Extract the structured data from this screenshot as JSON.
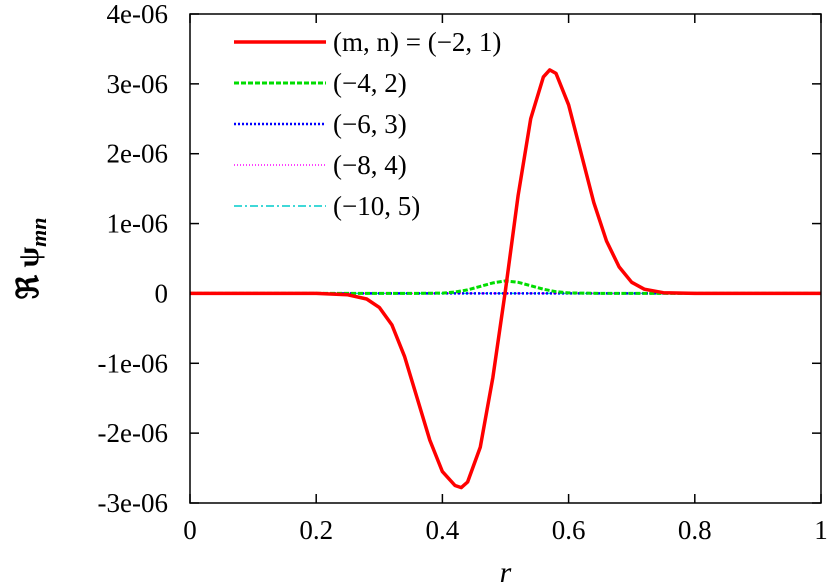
{
  "chart_data": {
    "type": "line",
    "title": "",
    "xlabel": "r",
    "ylabel": "ℜ ψ_mn",
    "ylabel_parts": {
      "prefix": "ℜ ψ",
      "subscript": "mn"
    },
    "xlim": [
      0,
      1
    ],
    "ylim": [
      -3e-06,
      4e-06
    ],
    "xticks": [
      0,
      0.2,
      0.4,
      0.6,
      0.8,
      1
    ],
    "xtick_labels": [
      "0",
      "0.2",
      "0.4",
      "0.6",
      "0.8",
      "1"
    ],
    "yticks": [
      -3e-06,
      -2e-06,
      -1e-06,
      0,
      1e-06,
      2e-06,
      3e-06,
      4e-06
    ],
    "ytick_labels": [
      "-3e-06",
      "-2e-06",
      "-1e-06",
      "0",
      "1e-06",
      "2e-06",
      "3e-06",
      "4e-06"
    ],
    "grid": false,
    "legend_position": "top-left",
    "series": [
      {
        "name": "(m, n) = (−2, 1)",
        "color": "#ff0000",
        "dash": "solid",
        "x": [
          0,
          0.1,
          0.2,
          0.25,
          0.28,
          0.3,
          0.32,
          0.34,
          0.36,
          0.38,
          0.4,
          0.42,
          0.43,
          0.44,
          0.46,
          0.48,
          0.5,
          0.52,
          0.54,
          0.56,
          0.57,
          0.58,
          0.6,
          0.62,
          0.64,
          0.66,
          0.68,
          0.7,
          0.72,
          0.75,
          0.8,
          0.9,
          1.0
        ],
        "y": [
          0,
          0,
          0,
          -2e-08,
          -8e-08,
          -2e-07,
          -4.5e-07,
          -9e-07,
          -1.5e-06,
          -2.1e-06,
          -2.55e-06,
          -2.75e-06,
          -2.78e-06,
          -2.7e-06,
          -2.2e-06,
          -1.2e-06,
          5e-08,
          1.4e-06,
          2.5e-06,
          3.1e-06,
          3.2e-06,
          3.15e-06,
          2.7e-06,
          2e-06,
          1.3e-06,
          7.5e-07,
          3.8e-07,
          1.6e-07,
          6e-08,
          1e-08,
          0,
          0,
          0
        ]
      },
      {
        "name": "(−4, 2)",
        "color": "#00dd00",
        "dash": "dashed",
        "x": [
          0,
          0.35,
          0.4,
          0.42,
          0.44,
          0.46,
          0.48,
          0.5,
          0.52,
          0.54,
          0.56,
          0.58,
          0.6,
          0.65,
          1.0
        ],
        "y": [
          0,
          0,
          5e-09,
          2e-08,
          5e-08,
          1e-07,
          1.5e-07,
          1.8e-07,
          1.6e-07,
          1.1e-07,
          6e-08,
          2.5e-08,
          8e-09,
          0,
          0
        ]
      },
      {
        "name": "(−6, 3)",
        "color": "#0000ff",
        "dash": "dotted",
        "x": [
          0,
          1
        ],
        "y": [
          0,
          0
        ]
      },
      {
        "name": "(−8, 4)",
        "color": "#ff00ff",
        "dash": "fine-dotted",
        "x": [
          0,
          1
        ],
        "y": [
          0,
          0
        ]
      },
      {
        "name": "(−10, 5)",
        "color": "#00cccc",
        "dash": "dash-dot",
        "x": [
          0,
          1
        ],
        "y": [
          0,
          0
        ]
      }
    ]
  }
}
